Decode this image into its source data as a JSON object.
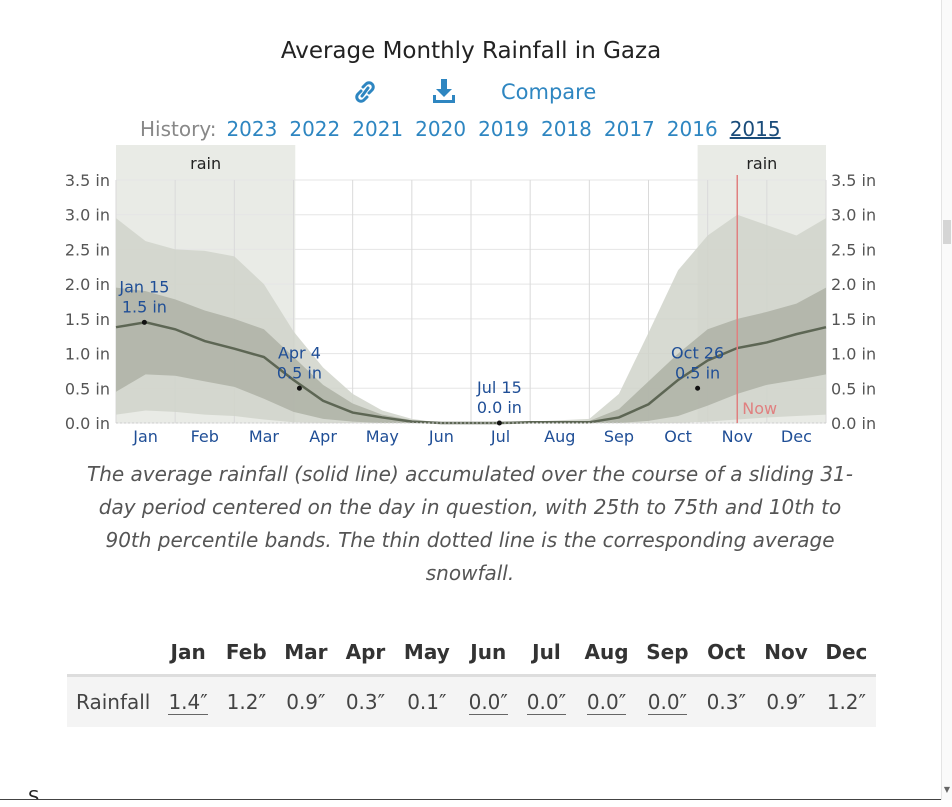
{
  "page": {
    "title": "Average Monthly Rainfall in Gaza",
    "actions": {
      "link_icon": "link-icon",
      "download_icon": "download-icon",
      "compare_label": "Compare"
    },
    "history": {
      "label": "History:",
      "years": [
        "2023",
        "2022",
        "2021",
        "2020",
        "2019",
        "2018",
        "2017",
        "2016",
        "2015"
      ],
      "selected": "2015"
    },
    "caption": "The average rainfall (solid line) accumulated over the course of a sliding 31-day period centered on the day in question, with 25th to 75th and 10th to 90th percentile bands. The thin dotted line is the corresponding average snowfall.",
    "table": {
      "months": [
        "Jan",
        "Feb",
        "Mar",
        "Apr",
        "May",
        "Jun",
        "Jul",
        "Aug",
        "Sep",
        "Oct",
        "Nov",
        "Dec"
      ],
      "row_label": "Rainfall",
      "values": [
        "1.4″",
        "1.2″",
        "0.9″",
        "0.3″",
        "0.1″",
        "0.0″",
        "0.0″",
        "0.0″",
        "0.0″",
        "0.3″",
        "0.9″",
        "1.2″"
      ],
      "underlined": [
        true,
        false,
        false,
        false,
        false,
        true,
        true,
        true,
        true,
        false,
        false,
        false
      ]
    },
    "truncated_text": "S"
  },
  "chart_data": {
    "type": "area",
    "title": "Average Monthly Rainfall in Gaza",
    "xlabel": "",
    "ylabel": "",
    "ylim": [
      0,
      3.5
    ],
    "y_ticks": [
      0.0,
      0.5,
      1.0,
      1.5,
      2.0,
      2.5,
      3.0,
      3.5
    ],
    "y_tick_labels": [
      "0.0 in",
      "0.5 in",
      "1.0 in",
      "1.5 in",
      "2.0 in",
      "2.5 in",
      "3.0 in",
      "3.5 in"
    ],
    "x_domain": [
      0,
      12
    ],
    "x_tick_labels": [
      "Jan",
      "Feb",
      "Mar",
      "Apr",
      "May",
      "Jun",
      "Jul",
      "Aug",
      "Sep",
      "Oct",
      "Nov",
      "Dec"
    ],
    "x": [
      0,
      0.5,
      1,
      1.5,
      2,
      2.5,
      3,
      3.5,
      4,
      4.5,
      5,
      5.5,
      6,
      6.5,
      7,
      7.5,
      8,
      8.5,
      9,
      9.5,
      10,
      10.5,
      11,
      11.5,
      12
    ],
    "series": [
      {
        "name": "average",
        "values": [
          1.38,
          1.45,
          1.35,
          1.18,
          1.07,
          0.95,
          0.62,
          0.32,
          0.15,
          0.08,
          0.02,
          0.0,
          0.0,
          0.0,
          0.01,
          0.01,
          0.01,
          0.08,
          0.27,
          0.62,
          0.9,
          1.08,
          1.16,
          1.28,
          1.38
        ]
      },
      {
        "name": "p25",
        "values": [
          0.45,
          0.7,
          0.68,
          0.6,
          0.52,
          0.35,
          0.16,
          0.06,
          0.02,
          0.0,
          0.0,
          0.0,
          0.0,
          0.0,
          0.0,
          0.0,
          0.0,
          0.0,
          0.03,
          0.1,
          0.25,
          0.42,
          0.55,
          0.62,
          0.7
        ]
      },
      {
        "name": "p75",
        "values": [
          1.95,
          1.9,
          1.78,
          1.62,
          1.5,
          1.35,
          0.95,
          0.55,
          0.28,
          0.12,
          0.04,
          0.0,
          0.0,
          0.0,
          0.01,
          0.02,
          0.03,
          0.2,
          0.6,
          1.0,
          1.35,
          1.5,
          1.6,
          1.72,
          1.95
        ]
      },
      {
        "name": "p10",
        "values": [
          0.12,
          0.18,
          0.16,
          0.12,
          0.1,
          0.05,
          0.01,
          0.0,
          0.0,
          0.0,
          0.0,
          0.0,
          0.0,
          0.0,
          0.0,
          0.0,
          0.0,
          0.0,
          0.0,
          0.0,
          0.02,
          0.05,
          0.08,
          0.1,
          0.12
        ]
      },
      {
        "name": "p90",
        "values": [
          2.95,
          2.62,
          2.5,
          2.48,
          2.4,
          2.0,
          1.32,
          0.8,
          0.42,
          0.18,
          0.06,
          0.0,
          0.0,
          0.0,
          0.02,
          0.04,
          0.06,
          0.42,
          1.3,
          2.2,
          2.7,
          3.0,
          2.85,
          2.7,
          2.95
        ]
      }
    ],
    "shaded_periods": [
      {
        "label": "rain",
        "start": 0,
        "end": 3.03
      },
      {
        "label": "rain",
        "start": 9.83,
        "end": 12
      }
    ],
    "now_marker": {
      "label": "Now",
      "x": 10.5
    },
    "annotations": [
      {
        "date": "Jan 15",
        "value_label": "1.5 in",
        "x": 0.48,
        "y": 1.45
      },
      {
        "date": "Apr 4",
        "value_label": "0.5 in",
        "x": 3.1,
        "y": 0.5
      },
      {
        "date": "Jul 15",
        "value_label": "0.0 in",
        "x": 6.48,
        "y": 0.0
      },
      {
        "date": "Oct 26",
        "value_label": "0.5 in",
        "x": 9.83,
        "y": 0.5
      }
    ],
    "colors": {
      "band90": "#d0d3ca",
      "band75": "#aeb2a6",
      "line": "#5d6654",
      "season": "#e9ebe6",
      "now": "#e08080",
      "annotation": "#1f4e96"
    }
  }
}
